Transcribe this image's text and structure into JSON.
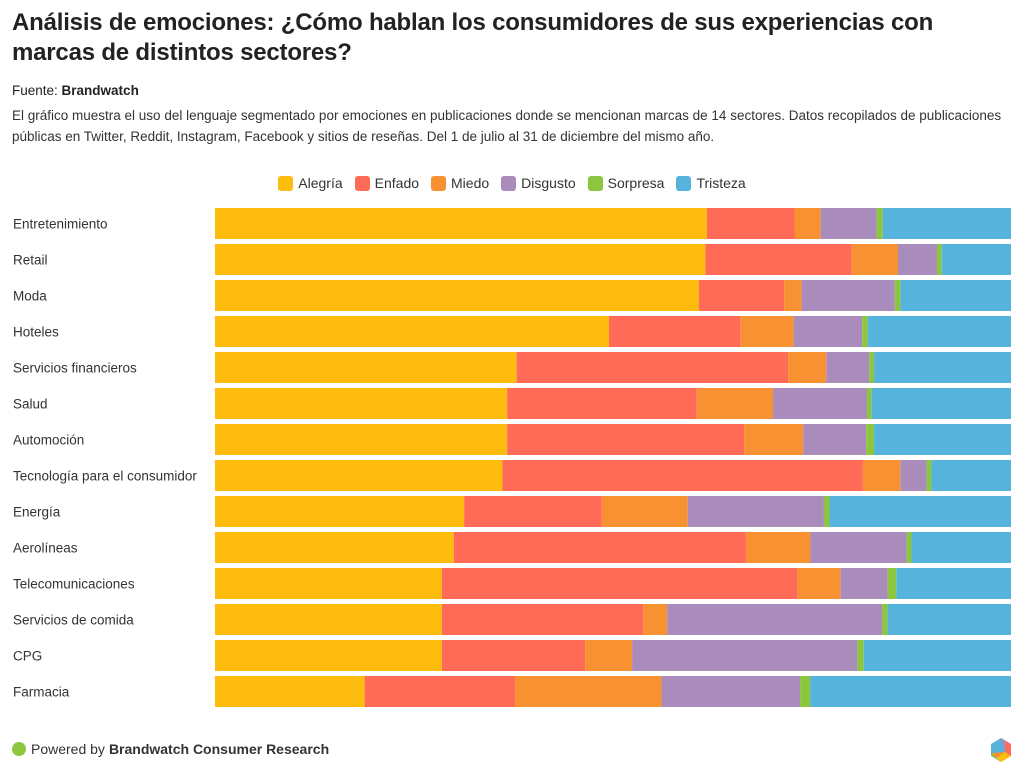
{
  "header": {
    "title": "Análisis de emociones: ¿Cómo hablan los consumidores de sus experiencias con marcas de distintos sectores?",
    "source_label": "Fuente:",
    "source_name": "Brandwatch",
    "description": "El gráfico muestra el uso del lenguaje segmentado por emociones en publicaciones donde se mencionan marcas de 14 sectores. Datos recopilados de publicaciones públicas en Twitter, Reddit, Instagram, Facebook y sitios de reseñas. Del 1 de julio al 31 de diciembre del mismo año."
  },
  "footer": {
    "powered_by": "Powered by",
    "brand": "Brandwatch Consumer Research"
  },
  "chart_data": {
    "type": "bar",
    "orientation": "horizontal",
    "stacked": "percent",
    "title": "Análisis de emociones: ¿Cómo hablan los consumidores de sus experiencias con marcas de distintos sectores?",
    "xlabel": "",
    "ylabel": "",
    "xlim": [
      0,
      100
    ],
    "grid": false,
    "legend_position": "top-center",
    "categories": [
      "Entretenimiento",
      "Retail",
      "Moda",
      "Hoteles",
      "Servicios financieros",
      "Salud",
      "Automoción",
      "Tecnología para el consumidor",
      "Energía",
      "Aerolíneas",
      "Telecomunicaciones",
      "Servicios de comida",
      "CPG",
      "Farmacia"
    ],
    "series": [
      {
        "name": "Alegría",
        "color": "#FEBC0E",
        "values": [
          61.8,
          61.6,
          60.8,
          49.5,
          37.9,
          36.7,
          36.7,
          36.1,
          31.3,
          30.0,
          28.5,
          28.5,
          28.5,
          18.8
        ]
      },
      {
        "name": "Enfado",
        "color": "#FF6B57",
        "values": [
          11.0,
          18.4,
          10.7,
          16.5,
          34.1,
          23.8,
          29.8,
          45.3,
          17.3,
          36.7,
          44.7,
          25.3,
          18.0,
          18.9
        ]
      },
      {
        "name": "Miedo",
        "color": "#F89132",
        "values": [
          3.3,
          5.8,
          2.2,
          6.7,
          4.8,
          9.6,
          7.4,
          4.7,
          10.8,
          8.1,
          5.4,
          3.0,
          5.9,
          18.4
        ]
      },
      {
        "name": "Disgusto",
        "color": "#A98BBC",
        "values": [
          7.0,
          4.9,
          11.7,
          8.6,
          5.4,
          11.8,
          7.9,
          3.3,
          17.1,
          12.1,
          5.9,
          27.0,
          28.3,
          17.4
        ]
      },
      {
        "name": "Sorpresa",
        "color": "#8CC63F",
        "values": [
          0.8,
          0.6,
          0.7,
          0.7,
          0.6,
          0.6,
          1.0,
          0.6,
          0.7,
          0.6,
          1.1,
          0.7,
          0.8,
          1.3
        ]
      },
      {
        "name": "Tristeza",
        "color": "#56B4DC",
        "values": [
          16.1,
          8.7,
          13.9,
          18.0,
          17.2,
          17.5,
          17.2,
          10.0,
          22.8,
          12.5,
          14.4,
          15.5,
          18.5,
          25.2
        ]
      }
    ]
  }
}
